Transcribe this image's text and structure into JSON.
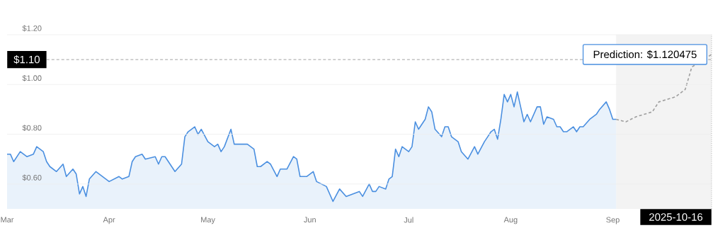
{
  "chart_data": {
    "type": "area",
    "xlim": [
      "2025-03-16",
      "2025-10-16"
    ],
    "xticks": [
      {
        "value": "2025-03-16",
        "label": "Mar"
      },
      {
        "value": "2025-04-16",
        "label": "Apr"
      },
      {
        "value": "2025-05-16",
        "label": "May"
      },
      {
        "value": "2025-06-16",
        "label": "Jun"
      },
      {
        "value": "2025-07-16",
        "label": "Jul"
      },
      {
        "value": "2025-08-16",
        "label": "Aug"
      },
      {
        "value": "2025-09-16",
        "label": "Sep"
      }
    ],
    "ylim": [
      0.5,
      1.2
    ],
    "yticks": [
      {
        "value": 0.6,
        "label": "$0.60"
      },
      {
        "value": 0.8,
        "label": "$0.80"
      },
      {
        "value": 1.0,
        "label": "$1.00"
      },
      {
        "value": 1.2,
        "label": "$1.20"
      }
    ],
    "grid": "y",
    "series": [
      {
        "color": "#4a8fe0",
        "line_style": "solid",
        "x": [
          "2025-03-16",
          "2025-03-17",
          "2025-03-18",
          "2025-03-20",
          "2025-03-22",
          "2025-03-24",
          "2025-03-25",
          "2025-03-27",
          "2025-03-28",
          "2025-03-29",
          "2025-03-31",
          "2025-04-02",
          "2025-04-03",
          "2025-04-05",
          "2025-04-06",
          "2025-04-07",
          "2025-04-08",
          "2025-04-09",
          "2025-04-10",
          "2025-04-12",
          "2025-04-14",
          "2025-04-16",
          "2025-04-19",
          "2025-04-20",
          "2025-04-22",
          "2025-04-23",
          "2025-04-24",
          "2025-04-26",
          "2025-04-27",
          "2025-04-30",
          "2025-05-01",
          "2025-05-02",
          "2025-05-03",
          "2025-05-05",
          "2025-05-06",
          "2025-05-08",
          "2025-05-09",
          "2025-05-10",
          "2025-05-12",
          "2025-05-13",
          "2025-05-14",
          "2025-05-16",
          "2025-05-18",
          "2025-05-19",
          "2025-05-20",
          "2025-05-21",
          "2025-05-23",
          "2025-05-24",
          "2025-05-26",
          "2025-05-28",
          "2025-05-30",
          "2025-05-31",
          "2025-06-01",
          "2025-06-03",
          "2025-06-04",
          "2025-06-06",
          "2025-06-07",
          "2025-06-09",
          "2025-06-11",
          "2025-06-12",
          "2025-06-13",
          "2025-06-15",
          "2025-06-17",
          "2025-06-18",
          "2025-06-21",
          "2025-06-23",
          "2025-06-25",
          "2025-06-27",
          "2025-06-29",
          "2025-07-01",
          "2025-07-02",
          "2025-07-04",
          "2025-07-05",
          "2025-07-06",
          "2025-07-07",
          "2025-07-09",
          "2025-07-10",
          "2025-07-11",
          "2025-07-12",
          "2025-07-13",
          "2025-07-14",
          "2025-07-16",
          "2025-07-17",
          "2025-07-18",
          "2025-07-19",
          "2025-07-21",
          "2025-07-22",
          "2025-07-23",
          "2025-07-24",
          "2025-07-26",
          "2025-07-27",
          "2025-07-28",
          "2025-07-29",
          "2025-07-31",
          "2025-08-01",
          "2025-08-03",
          "2025-08-05",
          "2025-08-06",
          "2025-08-08",
          "2025-08-09",
          "2025-08-10",
          "2025-08-11",
          "2025-08-12",
          "2025-08-13",
          "2025-08-14",
          "2025-08-15",
          "2025-08-16",
          "2025-08-17",
          "2025-08-18",
          "2025-08-19",
          "2025-08-20",
          "2025-08-21",
          "2025-08-22",
          "2025-08-24",
          "2025-08-25",
          "2025-08-26",
          "2025-08-27",
          "2025-08-29",
          "2025-08-30",
          "2025-08-31",
          "2025-09-01",
          "2025-09-02",
          "2025-09-04",
          "2025-09-05",
          "2025-09-06",
          "2025-09-07",
          "2025-09-09",
          "2025-09-10",
          "2025-09-11",
          "2025-09-12",
          "2025-09-14",
          "2025-09-15",
          "2025-09-16",
          "2025-09-17"
        ],
        "values": [
          0.72,
          0.72,
          0.69,
          0.73,
          0.71,
          0.72,
          0.75,
          0.73,
          0.69,
          0.67,
          0.65,
          0.68,
          0.63,
          0.66,
          0.64,
          0.56,
          0.59,
          0.55,
          0.62,
          0.65,
          0.63,
          0.61,
          0.63,
          0.62,
          0.63,
          0.69,
          0.71,
          0.72,
          0.7,
          0.71,
          0.68,
          0.71,
          0.71,
          0.67,
          0.65,
          0.68,
          0.79,
          0.81,
          0.83,
          0.8,
          0.82,
          0.77,
          0.75,
          0.76,
          0.73,
          0.75,
          0.82,
          0.76,
          0.76,
          0.76,
          0.74,
          0.67,
          0.67,
          0.69,
          0.68,
          0.63,
          0.66,
          0.66,
          0.71,
          0.7,
          0.63,
          0.63,
          0.65,
          0.61,
          0.59,
          0.53,
          0.58,
          0.55,
          0.56,
          0.57,
          0.55,
          0.6,
          0.57,
          0.57,
          0.59,
          0.58,
          0.62,
          0.63,
          0.74,
          0.71,
          0.75,
          0.73,
          0.75,
          0.85,
          0.82,
          0.86,
          0.91,
          0.89,
          0.82,
          0.79,
          0.83,
          0.83,
          0.79,
          0.77,
          0.73,
          0.7,
          0.75,
          0.72,
          0.77,
          0.79,
          0.81,
          0.82,
          0.78,
          0.86,
          0.96,
          0.93,
          0.96,
          0.91,
          0.97,
          0.91,
          0.85,
          0.88,
          0.85,
          0.91,
          0.91,
          0.84,
          0.87,
          0.86,
          0.83,
          0.83,
          0.81,
          0.81,
          0.83,
          0.81,
          0.83,
          0.83,
          0.86,
          0.87,
          0.88,
          0.9,
          0.93,
          0.9,
          0.86,
          0.86
        ]
      },
      {
        "type": "line",
        "color": "#9e9e9e",
        "line_style": "dashed",
        "x": [
          "2025-09-17",
          "2025-09-20",
          "2025-09-23",
          "2025-09-28",
          "2025-09-30",
          "2025-10-05",
          "2025-10-08",
          "2025-10-10",
          "2025-10-16"
        ],
        "values": [
          0.86,
          0.85,
          0.87,
          0.89,
          0.93,
          0.95,
          0.98,
          1.07,
          1.120475
        ]
      }
    ],
    "bands": [
      {
        "axis": "x",
        "from": "2025-09-17",
        "to": "2025-10-16",
        "color": "#f3f3f3"
      }
    ],
    "ref_lines": [
      {
        "axis": "y",
        "value": 1.1,
        "label": "$1.10",
        "color": "#8a8a8a",
        "line_style": "dashed"
      },
      {
        "axis": "x",
        "value": "2025-10-16",
        "label": "2025-10-16",
        "color": "#8a8a8a",
        "line_style": "dotted"
      }
    ],
    "annotations": [
      {
        "text": "Prediction: $1.120475",
        "x": "2025-10-16",
        "y": 1.120475
      }
    ]
  }
}
